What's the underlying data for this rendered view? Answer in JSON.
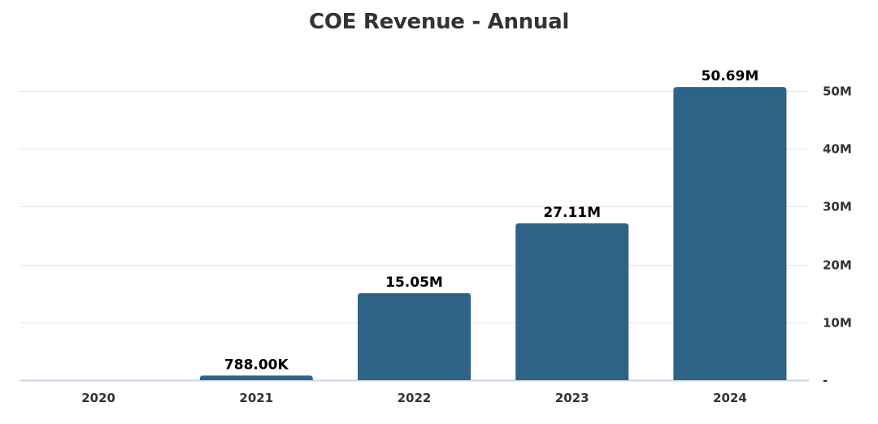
{
  "chart_data": {
    "type": "bar",
    "title": "COE Revenue - Annual",
    "xlabel": "",
    "ylabel": "",
    "categories": [
      "2020",
      "2021",
      "2022",
      "2023",
      "2024"
    ],
    "values": [
      0,
      788000,
      15050000,
      27110000,
      50690000
    ],
    "data_labels": [
      "",
      "788.00K",
      "15.05M",
      "27.11M",
      "50.69M"
    ],
    "ylim": [
      0,
      50000000
    ],
    "yticks": [
      0,
      10000000,
      20000000,
      30000000,
      40000000,
      50000000
    ],
    "ytick_labels": [
      "-",
      "10M",
      "20M",
      "30M",
      "40M",
      "50M"
    ],
    "y_axis_position": "right",
    "grid": true,
    "legend": "none",
    "bar_color": "#2e6287"
  }
}
